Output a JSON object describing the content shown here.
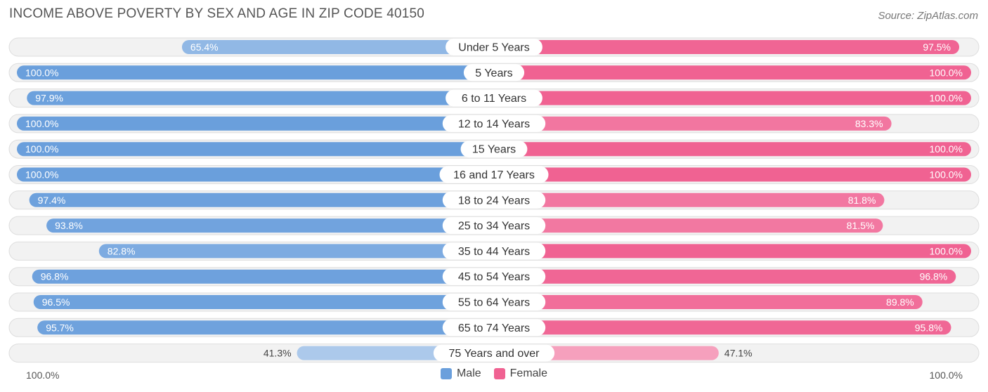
{
  "chart_data": {
    "type": "bar",
    "orientation": "horizontal-diverging",
    "title": "INCOME ABOVE POVERTY BY SEX AND AGE IN ZIP CODE 40150",
    "source": "Source: ZipAtlas.com",
    "categories": [
      "Under 5 Years",
      "5 Years",
      "6 to 11 Years",
      "12 to 14 Years",
      "15 Years",
      "16 and 17 Years",
      "18 to 24 Years",
      "25 to 34 Years",
      "35 to 44 Years",
      "45 to 54 Years",
      "55 to 64 Years",
      "65 to 74 Years",
      "75 Years and over"
    ],
    "series": [
      {
        "name": "Male",
        "color": "#6a9fdc",
        "values": [
          65.4,
          100.0,
          97.9,
          100.0,
          100.0,
          100.0,
          97.4,
          93.8,
          82.8,
          96.8,
          96.5,
          95.7,
          41.3
        ],
        "labels": [
          "65.4%",
          "100.0%",
          "97.9%",
          "100.0%",
          "100.0%",
          "100.0%",
          "97.4%",
          "93.8%",
          "82.8%",
          "96.8%",
          "96.5%",
          "95.7%",
          "41.3%"
        ]
      },
      {
        "name": "Female",
        "color": "#f06292",
        "values": [
          97.5,
          100.0,
          100.0,
          83.3,
          100.0,
          100.0,
          81.8,
          81.5,
          100.0,
          96.8,
          89.8,
          95.8,
          47.1
        ],
        "labels": [
          "97.5%",
          "100.0%",
          "100.0%",
          "83.3%",
          "100.0%",
          "100.0%",
          "81.8%",
          "81.5%",
          "100.0%",
          "96.8%",
          "89.8%",
          "95.8%",
          "47.1%"
        ]
      }
    ],
    "xlim": [
      0,
      100
    ],
    "axis_left_label": "100.0%",
    "axis_right_label": "100.0%",
    "legend_position": "bottom-center"
  }
}
